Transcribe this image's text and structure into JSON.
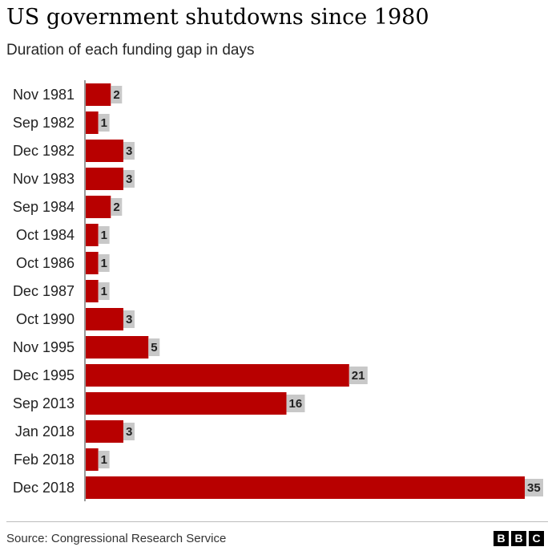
{
  "chart_data": {
    "type": "bar",
    "orientation": "horizontal",
    "title": "US government shutdowns since 1980",
    "subtitle": "Duration of each funding gap in days",
    "categories": [
      "Nov 1981",
      "Sep 1982",
      "Dec 1982",
      "Nov 1983",
      "Sep 1984",
      "Oct 1984",
      "Oct 1986",
      "Dec 1987",
      "Oct 1990",
      "Nov 1995",
      "Dec 1995",
      "Sep 2013",
      "Jan 2018",
      "Feb 2018",
      "Dec 2018"
    ],
    "values": [
      2,
      1,
      3,
      3,
      2,
      1,
      1,
      1,
      3,
      5,
      21,
      16,
      3,
      1,
      35
    ],
    "xlim": [
      0,
      35
    ],
    "grid": false,
    "bar_color": "#b80000",
    "label_bg_color": "#c8c8c8"
  },
  "footer": {
    "source": "Source: Congressional Research Service",
    "logo_letters": [
      "B",
      "B",
      "C"
    ]
  }
}
